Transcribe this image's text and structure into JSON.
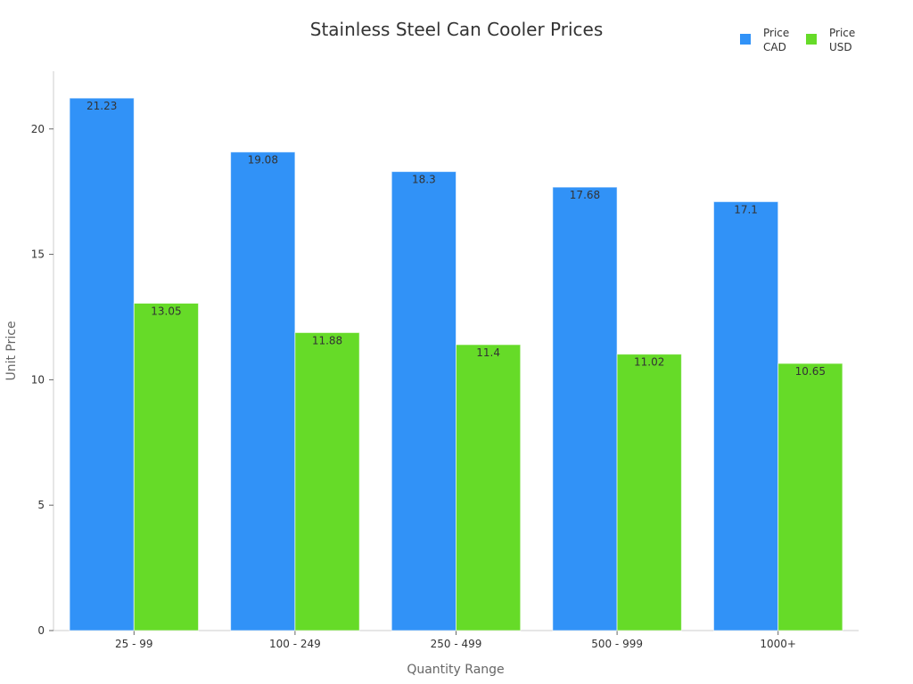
{
  "chart_data": {
    "type": "bar",
    "title": "Stainless Steel Can Cooler Prices",
    "xlabel": "Quantity Range",
    "ylabel": "Unit Price",
    "categories": [
      "25 - 99",
      "100 - 249",
      "250 - 499",
      "500 - 999",
      "1000+"
    ],
    "series": [
      {
        "name": "Price CAD",
        "name_lines": [
          "Price",
          "CAD"
        ],
        "color": "#3192f7",
        "values": [
          21.23,
          19.08,
          18.3,
          17.68,
          17.1
        ],
        "value_labels": [
          "21.23",
          "19.08",
          "18.3",
          "17.68",
          "17.1"
        ]
      },
      {
        "name": "Price USD",
        "name_lines": [
          "Price",
          "USD"
        ],
        "color": "#66db28",
        "values": [
          13.05,
          11.88,
          11.4,
          11.02,
          10.65
        ],
        "value_labels": [
          "13.05",
          "11.88",
          "11.4",
          "11.02",
          "10.65"
        ]
      }
    ],
    "ylim": [
      0,
      22.3
    ],
    "yticks": [
      0,
      5,
      10,
      15,
      20
    ],
    "ytick_labels": [
      "0",
      "5",
      "10",
      "15",
      "20"
    ],
    "grid": false,
    "legend_position": "top-right"
  }
}
